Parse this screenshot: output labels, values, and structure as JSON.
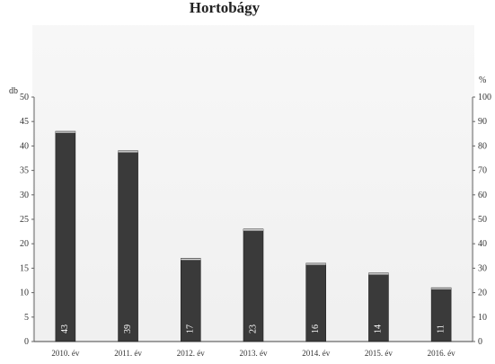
{
  "chart_data": {
    "type": "bar",
    "title": "Hortobágy",
    "categories": [
      "2010. év",
      "2011. év",
      "2012. év",
      "2013. év",
      "2014. év",
      "2015. év",
      "2016. év"
    ],
    "values": [
      43,
      39,
      17,
      23,
      16,
      14,
      11
    ],
    "data_labels": [
      "43",
      "39",
      "17",
      "23",
      "16",
      "14",
      "11"
    ],
    "y_left": {
      "unit": "db",
      "lim": [
        0,
        50
      ],
      "ticks": [
        "0",
        "5",
        "10",
        "15",
        "20",
        "25",
        "30",
        "35",
        "40",
        "45",
        "50"
      ]
    },
    "y_right": {
      "unit": "%",
      "lim": [
        0,
        100
      ],
      "ticks": [
        "0",
        "10",
        "20",
        "30",
        "40",
        "50",
        "60",
        "70",
        "80",
        "90",
        "100"
      ]
    },
    "bar_color": "#3a3a3a",
    "grid": false,
    "legend": "none"
  }
}
